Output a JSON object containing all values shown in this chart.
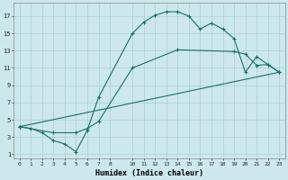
{
  "xlabel": "Humidex (Indice chaleur)",
  "bg_color": "#cce8ec",
  "grid_color": "#aacfd4",
  "line_color": "#1a6e6a",
  "xlim": [
    -0.5,
    23.5
  ],
  "ylim": [
    0.5,
    18.5
  ],
  "xticks": [
    0,
    1,
    2,
    3,
    4,
    5,
    6,
    7,
    8,
    10,
    11,
    12,
    13,
    14,
    15,
    16,
    17,
    18,
    19,
    20,
    21,
    22,
    23
  ],
  "yticks": [
    1,
    3,
    5,
    7,
    9,
    11,
    13,
    15,
    17
  ],
  "line1_x": [
    0,
    1,
    2,
    3,
    4,
    5,
    6,
    7,
    10,
    11,
    12,
    13,
    14,
    15,
    16,
    17,
    18,
    19,
    20,
    21,
    22,
    23
  ],
  "line1_y": [
    4.2,
    4.0,
    3.5,
    2.6,
    2.2,
    1.3,
    3.8,
    7.6,
    15.0,
    16.3,
    17.1,
    17.5,
    17.5,
    17.0,
    15.5,
    16.2,
    15.5,
    14.4,
    10.5,
    12.3,
    11.4,
    10.5
  ],
  "line2_x": [
    0,
    3,
    5,
    6,
    7,
    10,
    14,
    19,
    20,
    21,
    22,
    23
  ],
  "line2_y": [
    4.2,
    3.5,
    3.5,
    4.0,
    4.8,
    11.0,
    13.1,
    12.9,
    12.6,
    11.3,
    11.4,
    10.5
  ],
  "line3_x": [
    0,
    23
  ],
  "line3_y": [
    4.2,
    10.5
  ]
}
